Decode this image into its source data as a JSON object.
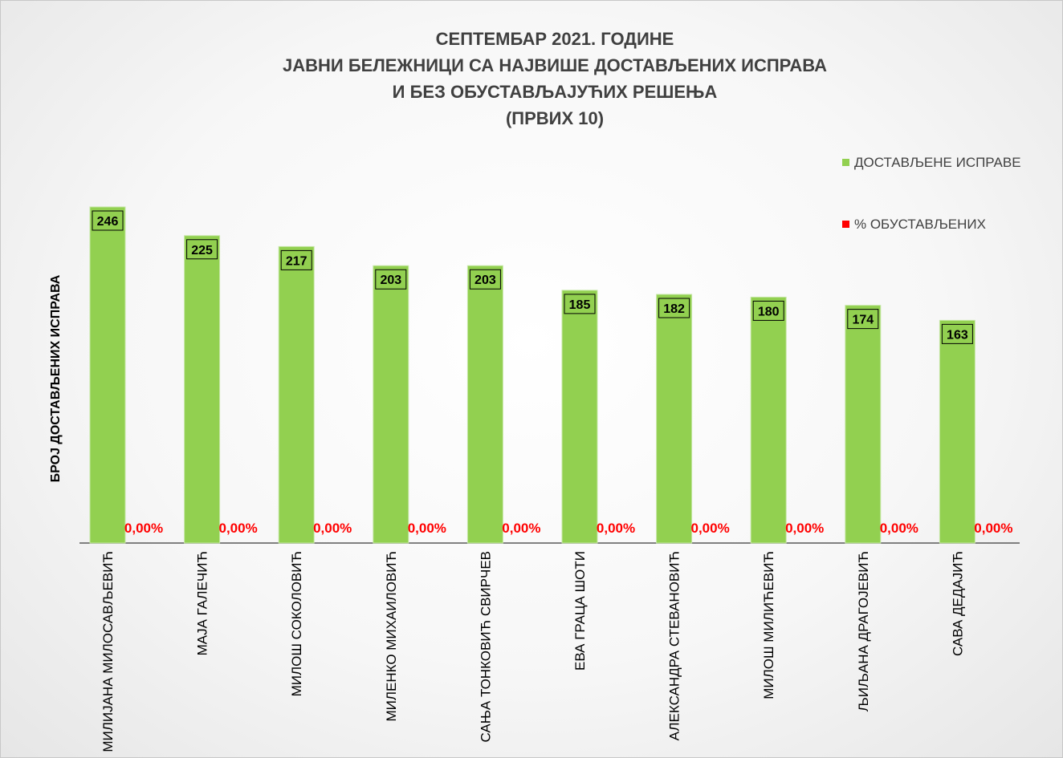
{
  "chart_data": {
    "type": "bar",
    "title": [
      "СЕПТЕМБАР 2021. ГОДИНЕ",
      "ЈАВНИ БЕЛЕЖНИЦИ СА НАЈВИШЕ ДОСТАВЉЕНИХ ИСПРАВА",
      "И БЕЗ ОБУСТАВЉАЈУЋИХ РЕШЕЊА",
      "(ПРВИХ 10)"
    ],
    "ylabel": "БРОЈ ДОСТАВЉЕНИХ ИСПРАВА",
    "xlabel": "",
    "categories": [
      "МИЛИЈАНА МИЛОСАВЉЕВИЋ",
      "МАЈА ГАЛЕЧИЋ",
      "МИЛОШ СОКОЛОВИЋ",
      "МИЛЕНКО МИХАИЛОВИЋ",
      "САЊА ТОНКОВИЋ СВИРЧЕВ",
      "ЕВА ГРАЦА ШОТИ",
      "АЛЕКСАНДРА СТЕВАНОВИЋ",
      "МИЛОШ МИЛИЋЕВИЋ",
      "ЉИЉАНА ДРАГОЈЕВИЋ",
      "САВА ДЕДАЈИЋ"
    ],
    "series": [
      {
        "name": "ДОСТАВЉЕНЕ ИСПРАВЕ",
        "color": "#92d050",
        "values": [
          246,
          225,
          217,
          203,
          203,
          185,
          182,
          180,
          174,
          163
        ],
        "labels": [
          "246",
          "225",
          "217",
          "203",
          "203",
          "185",
          "182",
          "180",
          "174",
          "163"
        ]
      },
      {
        "name": "% ОБУСТАВЉЕНИХ",
        "color": "#ff0000",
        "values": [
          0,
          0,
          0,
          0,
          0,
          0,
          0,
          0,
          0,
          0
        ],
        "labels": [
          "0,00%",
          "0,00%",
          "0,00%",
          "0,00%",
          "0,00%",
          "0,00%",
          "0,00%",
          "0,00%",
          "0,00%",
          "0,00%"
        ]
      }
    ],
    "ylim": [
      0,
      246
    ],
    "grid": false,
    "legend_position": "top-right"
  }
}
